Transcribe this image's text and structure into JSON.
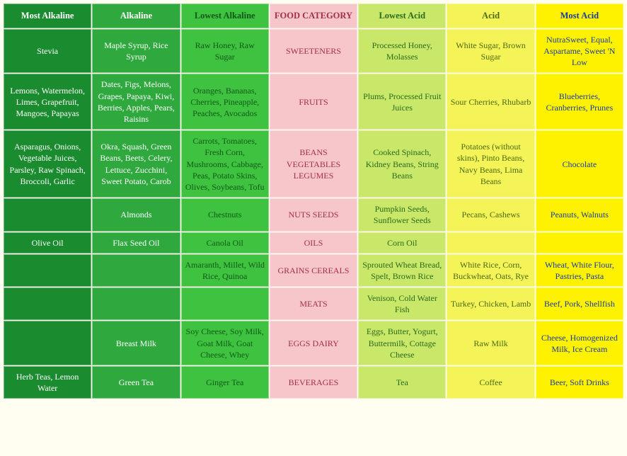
{
  "table": {
    "columns": [
      {
        "key": "most_alkaline",
        "header": "Most Alkaline",
        "bg": "#1a8b2e",
        "fg": "#ffffff",
        "width": "14.3%"
      },
      {
        "key": "alkaline",
        "header": "Alkaline",
        "bg": "#2fa83e",
        "fg": "#ffffff",
        "width": "14.3%"
      },
      {
        "key": "lowest_alkaline",
        "header": "Lowest Alkaline",
        "bg": "#3ec23f",
        "fg": "#105a18",
        "width": "14.3%"
      },
      {
        "key": "category",
        "header": "FOOD CATEGORY",
        "bg": "#f7c6cb",
        "fg": "#a03048",
        "width": "14.3%"
      },
      {
        "key": "lowest_acid",
        "header": "Lowest Acid",
        "bg": "#c9e86a",
        "fg": "#2a6a1a",
        "width": "14.3%"
      },
      {
        "key": "acid",
        "header": "Acid",
        "bg": "#f4f458",
        "fg": "#4a6a10",
        "width": "14.3%"
      },
      {
        "key": "most_acid",
        "header": "Most Acid",
        "bg": "#fff200",
        "fg": "#1a3aa0",
        "width": "14.3%"
      }
    ],
    "rows": [
      {
        "most_alkaline": "Stevia",
        "alkaline": "Maple Syrup, Rice Syrup",
        "lowest_alkaline": "Raw Honey, Raw Sugar",
        "category": "SWEETENERS",
        "lowest_acid": "Processed Honey, Molasses",
        "acid": "White Sugar, Brown Sugar",
        "most_acid": "NutraSweet, Equal, Aspartame, Sweet 'N Low"
      },
      {
        "most_alkaline": "Lemons, Watermelon, Limes, Grapefruit, Mangoes, Papayas",
        "alkaline": "Dates, Figs, Melons, Grapes, Papaya, Kiwi, Berries, Apples, Pears, Raisins",
        "lowest_alkaline": "Oranges, Bananas, Cherries, Pineapple, Peaches, Avocados",
        "category": "FRUITS",
        "lowest_acid": "Plums, Processed Fruit Juices",
        "acid": "Sour Cherries, Rhubarb",
        "most_acid": "Blueberries, Cranberries, Prunes"
      },
      {
        "most_alkaline": "Asparagus, Onions, Vegetable Juices, Parsley, Raw Spinach, Broccoli, Garlic",
        "alkaline": "Okra, Squash, Green Beans, Beets, Celery, Lettuce, Zucchini, Sweet Potato, Carob",
        "lowest_alkaline": "Carrots, Tomatoes, Fresh Corn, Mushrooms, Cabbage, Peas, Potato Skins, Olives, Soybeans, Tofu",
        "category": "BEANS VEGETABLES LEGUMES",
        "lowest_acid": "Cooked Spinach, Kidney Beans, String Beans",
        "acid": "Potatoes (without skins), Pinto Beans, Navy Beans, Lima Beans",
        "most_acid": "Chocolate"
      },
      {
        "most_alkaline": "",
        "alkaline": "Almonds",
        "lowest_alkaline": "Chestnuts",
        "category": "NUTS SEEDS",
        "lowest_acid": "Pumpkin Seeds, Sunflower Seeds",
        "acid": "Pecans, Cashews",
        "most_acid": "Peanuts, Walnuts"
      },
      {
        "most_alkaline": "Olive Oil",
        "alkaline": "Flax Seed Oil",
        "lowest_alkaline": "Canola Oil",
        "category": "OILS",
        "lowest_acid": "Corn Oil",
        "acid": "",
        "most_acid": ""
      },
      {
        "most_alkaline": "",
        "alkaline": "",
        "lowest_alkaline": "Amaranth, Millet, Wild Rice, Quinoa",
        "category": "GRAINS CEREALS",
        "lowest_acid": "Sprouted Wheat Bread, Spelt, Brown Rice",
        "acid": "White Rice, Corn, Buckwheat, Oats, Rye",
        "most_acid": "Wheat, White Flour, Pastries, Pasta"
      },
      {
        "most_alkaline": "",
        "alkaline": "",
        "lowest_alkaline": "",
        "category": "MEATS",
        "lowest_acid": "Venison, Cold Water Fish",
        "acid": "Turkey, Chicken, Lamb",
        "most_acid": "Beef, Pork, Shellfish"
      },
      {
        "most_alkaline": "",
        "alkaline": "Breast Milk",
        "lowest_alkaline": "Soy Cheese, Soy Milk, Goat Milk, Goat Cheese, Whey",
        "category": "EGGS DAIRY",
        "lowest_acid": "Eggs, Butter, Yogurt, Buttermilk, Cottage Cheese",
        "acid": "Raw Milk",
        "most_acid": "Cheese, Homogenized Milk, Ice Cream"
      },
      {
        "most_alkaline": "Herb Teas, Lemon Water",
        "alkaline": "Green Tea",
        "lowest_alkaline": "Ginger Tea",
        "category": "BEVERAGES",
        "lowest_acid": "Tea",
        "acid": "Coffee",
        "most_acid": "Beer, Soft Drinks"
      }
    ]
  }
}
